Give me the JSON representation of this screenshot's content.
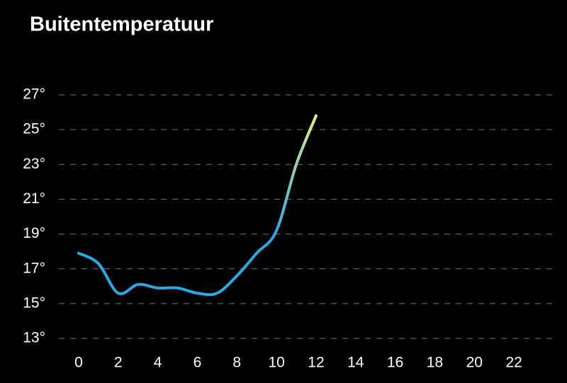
{
  "chart_data": {
    "type": "line",
    "title": "Buitentemperatuur",
    "x": [
      0,
      1,
      2,
      3,
      4,
      5,
      6,
      7,
      8,
      9,
      10,
      11,
      12
    ],
    "series": [
      {
        "values": [
          17.9,
          17.3,
          15.6,
          16.1,
          15.9,
          15.9,
          15.6,
          15.6,
          16.6,
          17.9,
          19.2,
          23.0,
          25.8
        ],
        "colors": [
          "#2aa9e2",
          "#e2f57c"
        ]
      }
    ],
    "xlim": [
      -1,
      24
    ],
    "xticks": [
      0,
      2,
      4,
      6,
      8,
      10,
      12,
      14,
      16,
      18,
      20,
      22
    ],
    "ylim": [
      13,
      27
    ],
    "yticks": [
      {
        "value": 13,
        "label": "13°"
      },
      {
        "value": 15,
        "label": "15°"
      },
      {
        "value": 17,
        "label": "17°"
      },
      {
        "value": 19,
        "label": "19°"
      },
      {
        "value": 21,
        "label": "21°"
      },
      {
        "value": 23,
        "label": "23°"
      },
      {
        "value": 25,
        "label": "25°"
      },
      {
        "value": 27,
        "label": "27°"
      }
    ],
    "grid": true
  }
}
